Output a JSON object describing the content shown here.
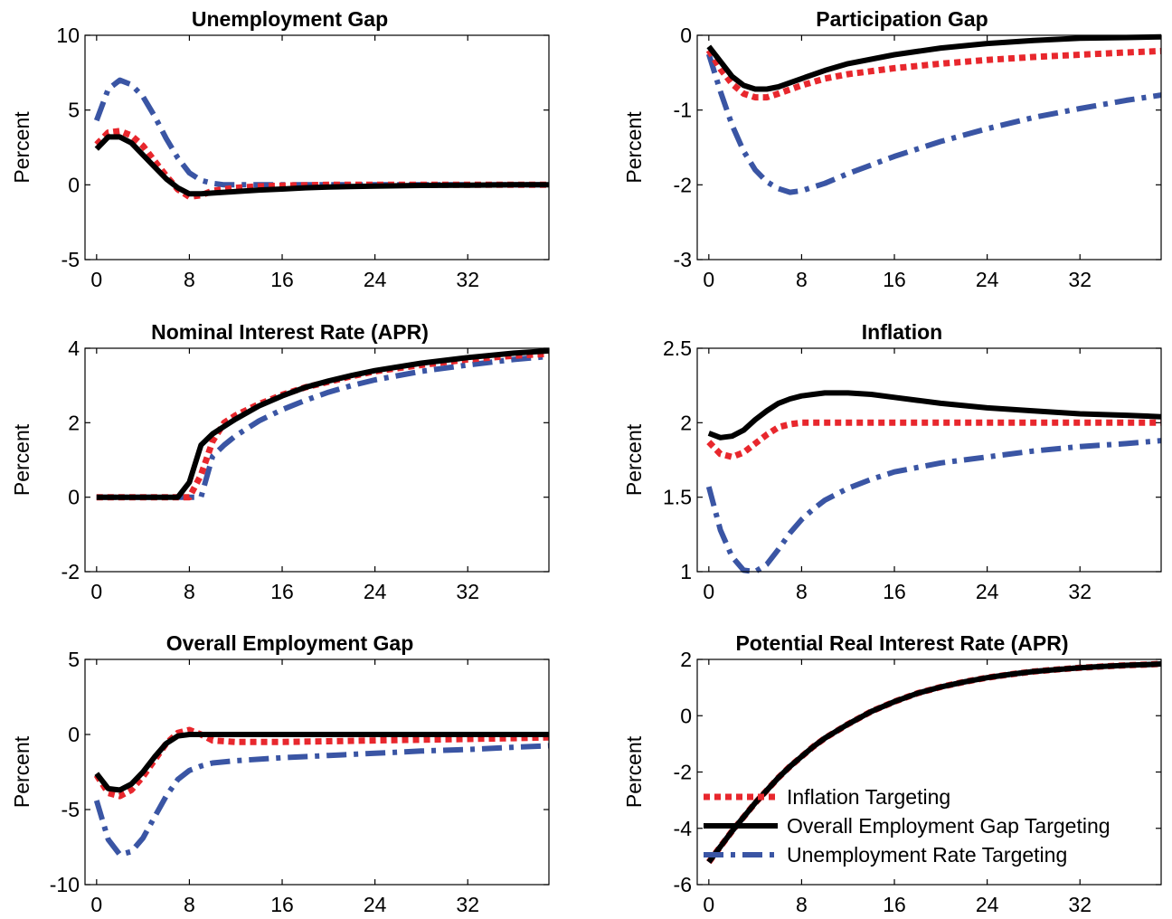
{
  "series_styles": [
    {
      "name": "Inflation Targeting",
      "color": "#e8272d",
      "dash": "dotted"
    },
    {
      "name": "Overall Employment Gap Targeting",
      "color": "#000000",
      "dash": "solid"
    },
    {
      "name": "Unemployment Rate Targeting",
      "color": "#3a55a4",
      "dash": "dashdot"
    }
  ],
  "chart_data": [
    {
      "type": "line",
      "title": "Unemployment Gap",
      "ylabel": "Percent",
      "xlim": [
        -1,
        39
      ],
      "ylim": [
        -5,
        10
      ],
      "xticks": [
        0,
        8,
        16,
        24,
        32
      ],
      "yticks": [
        -5,
        0,
        5,
        10
      ],
      "series": [
        {
          "name": "Inflation Targeting",
          "x": [
            0,
            1,
            2,
            3,
            4,
            5,
            6,
            7,
            8,
            9,
            10,
            12,
            14,
            16,
            20,
            24,
            28,
            32,
            36,
            39
          ],
          "y": [
            2.7,
            3.5,
            3.6,
            3.3,
            2.6,
            1.6,
            0.6,
            -0.3,
            -0.8,
            -0.7,
            -0.4,
            -0.2,
            -0.1,
            -0.05,
            0,
            0,
            0,
            0,
            0,
            0
          ]
        },
        {
          "name": "Overall Employment Gap Targeting",
          "x": [
            0,
            1,
            2,
            3,
            4,
            5,
            6,
            7,
            8,
            9,
            10,
            12,
            14,
            16,
            18,
            20,
            24,
            28,
            32,
            36,
            39
          ],
          "y": [
            2.4,
            3.2,
            3.2,
            2.8,
            2.0,
            1.2,
            0.4,
            -0.2,
            -0.6,
            -0.6,
            -0.55,
            -0.45,
            -0.35,
            -0.28,
            -0.2,
            -0.15,
            -0.08,
            -0.04,
            -0.02,
            0,
            0
          ]
        },
        {
          "name": "Unemployment Rate Targeting",
          "x": [
            0,
            1,
            2,
            3,
            4,
            5,
            6,
            7,
            8,
            9,
            10,
            11,
            12,
            14,
            16,
            20,
            24,
            28,
            32,
            36,
            39
          ],
          "y": [
            4.3,
            6.4,
            7.0,
            6.7,
            5.9,
            4.6,
            3.1,
            1.8,
            0.8,
            0.3,
            0.1,
            0,
            0,
            0,
            0,
            0,
            0,
            0,
            0,
            0,
            0
          ]
        }
      ]
    },
    {
      "type": "line",
      "title": "Participation Gap",
      "ylabel": "Percent",
      "xlim": [
        -1,
        39
      ],
      "ylim": [
        -3,
        0
      ],
      "xticks": [
        0,
        8,
        16,
        24,
        32
      ],
      "yticks": [
        -3,
        -2,
        -1,
        0
      ],
      "series": [
        {
          "name": "Inflation Targeting",
          "x": [
            0,
            1,
            2,
            3,
            4,
            5,
            6,
            8,
            10,
            12,
            16,
            20,
            24,
            28,
            32,
            36,
            39
          ],
          "y": [
            -0.2,
            -0.45,
            -0.65,
            -0.78,
            -0.83,
            -0.83,
            -0.78,
            -0.67,
            -0.58,
            -0.52,
            -0.44,
            -0.38,
            -0.33,
            -0.29,
            -0.26,
            -0.23,
            -0.21
          ]
        },
        {
          "name": "Overall Employment Gap Targeting",
          "x": [
            0,
            1,
            2,
            3,
            4,
            5,
            6,
            8,
            10,
            12,
            16,
            20,
            24,
            28,
            32,
            36,
            39
          ],
          "y": [
            -0.15,
            -0.35,
            -0.55,
            -0.67,
            -0.72,
            -0.72,
            -0.69,
            -0.58,
            -0.47,
            -0.38,
            -0.26,
            -0.17,
            -0.11,
            -0.07,
            -0.04,
            -0.03,
            -0.02
          ]
        },
        {
          "name": "Unemployment Rate Targeting",
          "x": [
            0,
            1,
            2,
            3,
            4,
            5,
            6,
            7,
            8,
            10,
            12,
            16,
            20,
            24,
            28,
            32,
            36,
            39
          ],
          "y": [
            -0.25,
            -0.75,
            -1.2,
            -1.55,
            -1.8,
            -1.96,
            -2.05,
            -2.1,
            -2.08,
            -1.98,
            -1.85,
            -1.62,
            -1.42,
            -1.25,
            -1.1,
            -0.98,
            -0.87,
            -0.8
          ]
        }
      ]
    },
    {
      "type": "line",
      "title": "Nominal Interest Rate (APR)",
      "ylabel": "Percent",
      "xlim": [
        -1,
        39
      ],
      "ylim": [
        -2,
        4
      ],
      "xticks": [
        0,
        8,
        16,
        24,
        32
      ],
      "yticks": [
        -2,
        0,
        2,
        4
      ],
      "series": [
        {
          "name": "Inflation Targeting",
          "x": [
            0,
            2,
            4,
            6,
            8,
            9,
            10,
            11,
            12,
            14,
            16,
            18,
            20,
            22,
            24,
            28,
            32,
            36,
            39
          ],
          "y": [
            0,
            0,
            0,
            0,
            0,
            0.6,
            1.5,
            2.0,
            2.2,
            2.5,
            2.75,
            2.95,
            3.1,
            3.25,
            3.38,
            3.55,
            3.7,
            3.8,
            3.85
          ]
        },
        {
          "name": "Overall Employment Gap Targeting",
          "x": [
            0,
            2,
            4,
            6,
            7,
            8,
            9,
            10,
            11,
            12,
            14,
            16,
            18,
            20,
            22,
            24,
            28,
            32,
            36,
            39
          ],
          "y": [
            0,
            0,
            0,
            0,
            0,
            0.4,
            1.4,
            1.7,
            1.9,
            2.1,
            2.45,
            2.72,
            2.95,
            3.12,
            3.27,
            3.4,
            3.6,
            3.75,
            3.87,
            3.93
          ]
        },
        {
          "name": "Unemployment Rate Targeting",
          "x": [
            0,
            2,
            4,
            6,
            8,
            9,
            10,
            11,
            12,
            14,
            16,
            18,
            20,
            22,
            24,
            28,
            32,
            36,
            39
          ],
          "y": [
            0,
            0,
            0,
            0,
            0,
            0,
            1.1,
            1.4,
            1.65,
            2.05,
            2.35,
            2.6,
            2.82,
            3.0,
            3.15,
            3.38,
            3.55,
            3.7,
            3.78
          ]
        }
      ]
    },
    {
      "type": "line",
      "title": "Inflation",
      "ylabel": "Percent",
      "xlim": [
        -1,
        39
      ],
      "ylim": [
        1,
        2.5
      ],
      "xticks": [
        0,
        8,
        16,
        24,
        32
      ],
      "yticks": [
        1,
        1.5,
        2,
        2.5
      ],
      "series": [
        {
          "name": "Inflation Targeting",
          "x": [
            0,
            1,
            2,
            3,
            4,
            5,
            6,
            7,
            8,
            10,
            12,
            16,
            20,
            24,
            28,
            32,
            36,
            39
          ],
          "y": [
            1.87,
            1.79,
            1.77,
            1.8,
            1.86,
            1.92,
            1.97,
            1.99,
            2.0,
            2.0,
            2.0,
            2.0,
            2.0,
            2.0,
            2.0,
            2.0,
            2.0,
            2.0
          ]
        },
        {
          "name": "Overall Employment Gap Targeting",
          "x": [
            0,
            1,
            2,
            3,
            4,
            5,
            6,
            7,
            8,
            9,
            10,
            11,
            12,
            14,
            16,
            18,
            20,
            24,
            28,
            32,
            36,
            39
          ],
          "y": [
            1.93,
            1.9,
            1.91,
            1.95,
            2.02,
            2.08,
            2.13,
            2.16,
            2.18,
            2.19,
            2.2,
            2.2,
            2.2,
            2.19,
            2.17,
            2.15,
            2.13,
            2.1,
            2.08,
            2.06,
            2.05,
            2.04
          ]
        },
        {
          "name": "Unemployment Rate Targeting",
          "x": [
            0,
            1,
            2,
            3,
            4,
            5,
            6,
            7,
            8,
            9,
            10,
            12,
            14,
            16,
            20,
            24,
            28,
            32,
            36,
            39
          ],
          "y": [
            1.57,
            1.28,
            1.1,
            1.01,
            1.0,
            1.05,
            1.15,
            1.26,
            1.35,
            1.42,
            1.48,
            1.56,
            1.62,
            1.67,
            1.73,
            1.77,
            1.81,
            1.84,
            1.86,
            1.88
          ]
        }
      ]
    },
    {
      "type": "line",
      "title": "Overall Employment Gap",
      "ylabel": "Percent",
      "xlim": [
        -1,
        39
      ],
      "ylim": [
        -10,
        5
      ],
      "xticks": [
        0,
        8,
        16,
        24,
        32
      ],
      "yticks": [
        -10,
        -5,
        0,
        5
      ],
      "series": [
        {
          "name": "Inflation Targeting",
          "x": [
            0,
            1,
            2,
            3,
            4,
            5,
            6,
            7,
            8,
            9,
            10,
            12,
            16,
            20,
            24,
            28,
            32,
            36,
            39
          ],
          "y": [
            -2.7,
            -3.9,
            -4.1,
            -3.7,
            -2.8,
            -1.7,
            -0.6,
            0.1,
            0.3,
            0.0,
            -0.4,
            -0.5,
            -0.5,
            -0.45,
            -0.4,
            -0.35,
            -0.3,
            -0.25,
            -0.2
          ]
        },
        {
          "name": "Overall Employment Gap Targeting",
          "x": [
            0,
            1,
            2,
            3,
            4,
            5,
            6,
            7,
            8,
            9,
            10,
            12,
            16,
            20,
            24,
            28,
            32,
            36,
            39
          ],
          "y": [
            -2.6,
            -3.6,
            -3.7,
            -3.3,
            -2.5,
            -1.5,
            -0.6,
            -0.1,
            0,
            0,
            0,
            0,
            0,
            0,
            0,
            0,
            0,
            0,
            0
          ]
        },
        {
          "name": "Unemployment Rate Targeting",
          "x": [
            0,
            1,
            2,
            3,
            4,
            5,
            6,
            7,
            8,
            9,
            10,
            12,
            16,
            20,
            24,
            28,
            32,
            36,
            39
          ],
          "y": [
            -4.4,
            -7.0,
            -8.0,
            -7.8,
            -6.9,
            -5.5,
            -4.1,
            -3.0,
            -2.4,
            -2.1,
            -1.9,
            -1.75,
            -1.55,
            -1.4,
            -1.25,
            -1.1,
            -1.0,
            -0.85,
            -0.75
          ]
        }
      ]
    },
    {
      "type": "line",
      "title": "Potential Real Interest Rate (APR)",
      "ylabel": "Percent",
      "xlim": [
        -1,
        39
      ],
      "ylim": [
        -6,
        2
      ],
      "xticks": [
        0,
        8,
        16,
        24,
        32
      ],
      "yticks": [
        -6,
        -4,
        -2,
        0,
        2
      ],
      "legend": "lower-right",
      "series": [
        {
          "name": "Inflation Targeting",
          "x": [
            0,
            1,
            2,
            3,
            4,
            5,
            6,
            7,
            8,
            9,
            10,
            12,
            14,
            16,
            18,
            20,
            22,
            24,
            26,
            28,
            30,
            32,
            34,
            36,
            38,
            39
          ],
          "y": [
            -5.2,
            -4.65,
            -4.1,
            -3.6,
            -3.1,
            -2.65,
            -2.2,
            -1.8,
            -1.45,
            -1.1,
            -0.8,
            -0.3,
            0.15,
            0.5,
            0.8,
            1.02,
            1.2,
            1.35,
            1.47,
            1.57,
            1.64,
            1.7,
            1.75,
            1.79,
            1.82,
            1.84
          ]
        },
        {
          "name": "Overall Employment Gap Targeting",
          "x": [
            0,
            1,
            2,
            3,
            4,
            5,
            6,
            7,
            8,
            9,
            10,
            12,
            14,
            16,
            18,
            20,
            22,
            24,
            26,
            28,
            30,
            32,
            34,
            36,
            38,
            39
          ],
          "y": [
            -5.2,
            -4.65,
            -4.1,
            -3.6,
            -3.1,
            -2.65,
            -2.2,
            -1.8,
            -1.45,
            -1.1,
            -0.8,
            -0.3,
            0.15,
            0.5,
            0.8,
            1.02,
            1.2,
            1.35,
            1.47,
            1.57,
            1.64,
            1.7,
            1.75,
            1.79,
            1.82,
            1.84
          ]
        },
        {
          "name": "Unemployment Rate Targeting",
          "x": [
            0,
            1,
            2,
            3,
            4,
            5,
            6,
            7,
            8,
            9,
            10,
            12,
            14,
            16,
            18,
            20,
            22,
            24,
            26,
            28,
            30,
            32,
            34,
            36,
            38,
            39
          ],
          "y": [
            -5.2,
            -4.65,
            -4.1,
            -3.6,
            -3.1,
            -2.65,
            -2.2,
            -1.8,
            -1.45,
            -1.1,
            -0.8,
            -0.3,
            0.15,
            0.5,
            0.8,
            1.02,
            1.2,
            1.35,
            1.47,
            1.57,
            1.64,
            1.7,
            1.75,
            1.79,
            1.82,
            1.84
          ]
        }
      ]
    }
  ]
}
